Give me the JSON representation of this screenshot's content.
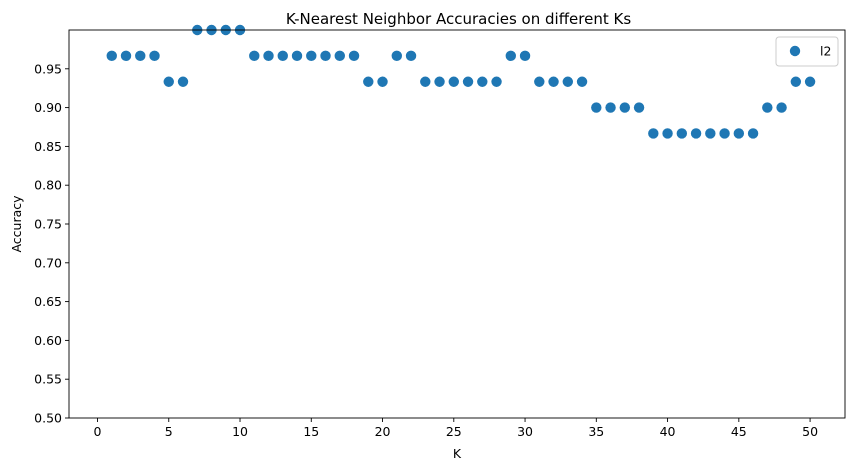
{
  "chart_data": {
    "type": "scatter",
    "title": "K-Nearest Neighbor Accuracies on different Ks",
    "xlabel": "K",
    "ylabel": "Accuracy",
    "xlim": [
      -2,
      52.45
    ],
    "ylim": [
      0.5,
      1.0
    ],
    "xticks": [
      0,
      5,
      10,
      15,
      20,
      25,
      30,
      35,
      40,
      45,
      50
    ],
    "yticks": [
      0.5,
      0.55,
      0.6,
      0.65,
      0.7,
      0.75,
      0.8,
      0.85,
      0.9,
      0.95
    ],
    "ytick_labels": [
      "0.50",
      "0.55",
      "0.60",
      "0.65",
      "0.70",
      "0.75",
      "0.80",
      "0.85",
      "0.90",
      "0.95"
    ],
    "grid": false,
    "legend_position": "top-right",
    "series": [
      {
        "name": "l2",
        "color": "#1f77b4",
        "x": [
          1,
          2,
          3,
          4,
          5,
          6,
          7,
          8,
          9,
          10,
          11,
          12,
          13,
          14,
          15,
          16,
          17,
          18,
          19,
          20,
          21,
          22,
          23,
          24,
          25,
          26,
          27,
          28,
          29,
          30,
          31,
          32,
          33,
          34,
          35,
          36,
          37,
          38,
          39,
          40,
          41,
          42,
          43,
          44,
          45,
          46,
          47,
          48,
          49,
          50
        ],
        "y": [
          0.9667,
          0.9667,
          0.9667,
          0.9667,
          0.9333,
          0.9333,
          1.0,
          1.0,
          1.0,
          1.0,
          0.9667,
          0.9667,
          0.9667,
          0.9667,
          0.9667,
          0.9667,
          0.9667,
          0.9667,
          0.9333,
          0.9333,
          0.9667,
          0.9667,
          0.9333,
          0.9333,
          0.9333,
          0.9333,
          0.9333,
          0.9333,
          0.9667,
          0.9667,
          0.9333,
          0.9333,
          0.9333,
          0.9333,
          0.9,
          0.9,
          0.9,
          0.9,
          0.8667,
          0.8667,
          0.8667,
          0.8667,
          0.8667,
          0.8667,
          0.8667,
          0.8667,
          0.9,
          0.9,
          0.9333,
          0.9333
        ]
      }
    ]
  }
}
